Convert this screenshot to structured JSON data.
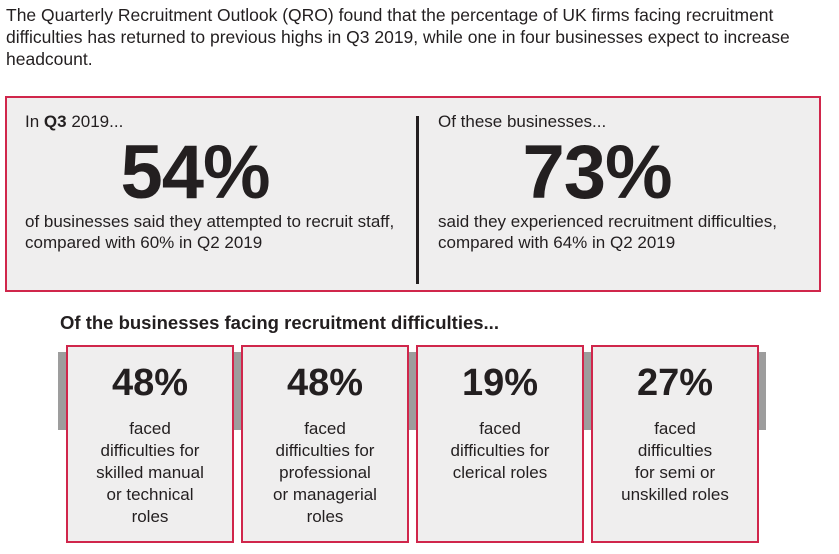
{
  "intro": {
    "text": "The Quarterly Recruitment Outlook (QRO) found that the percentage of UK firms facing recruitment difficulties has returned to previous highs in Q3 2019, while one in four businesses expect to increase headcount."
  },
  "top": {
    "left": {
      "heading_prefix": "In ",
      "heading_bold": "Q3",
      "heading_suffix": " 2019...",
      "value": "54%",
      "description": "of businesses said they attempted to recruit staff, compared with 60% in Q2 2019"
    },
    "right": {
      "heading": "Of these businesses...",
      "value": "73%",
      "description": "said they experienced recruitment difficulties, compared with 64% in Q2 2019"
    }
  },
  "section": {
    "heading": "Of the businesses facing recruitment difficulties..."
  },
  "cards": [
    {
      "value": "48%",
      "line1": "faced",
      "line2": "difficulties for",
      "line3": "skilled manual",
      "line4": "or technical",
      "line5": "roles"
    },
    {
      "value": "48%",
      "line1": "faced",
      "line2": "difficulties for",
      "line3": "professional",
      "line4": "or managerial",
      "line5": "roles"
    },
    {
      "value": "19%",
      "line1": "faced",
      "line2": "difficulties for",
      "line3": "clerical roles",
      "line4": "",
      "line5": ""
    },
    {
      "value": "27%",
      "line1": "faced",
      "line2": "difficulties",
      "line3": "for semi or",
      "line4": "unskilled roles",
      "line5": ""
    }
  ],
  "colors": {
    "accent": "#d0264b",
    "panel": "#efeeee",
    "bar": "#9d9d9d",
    "text": "#231f20"
  }
}
